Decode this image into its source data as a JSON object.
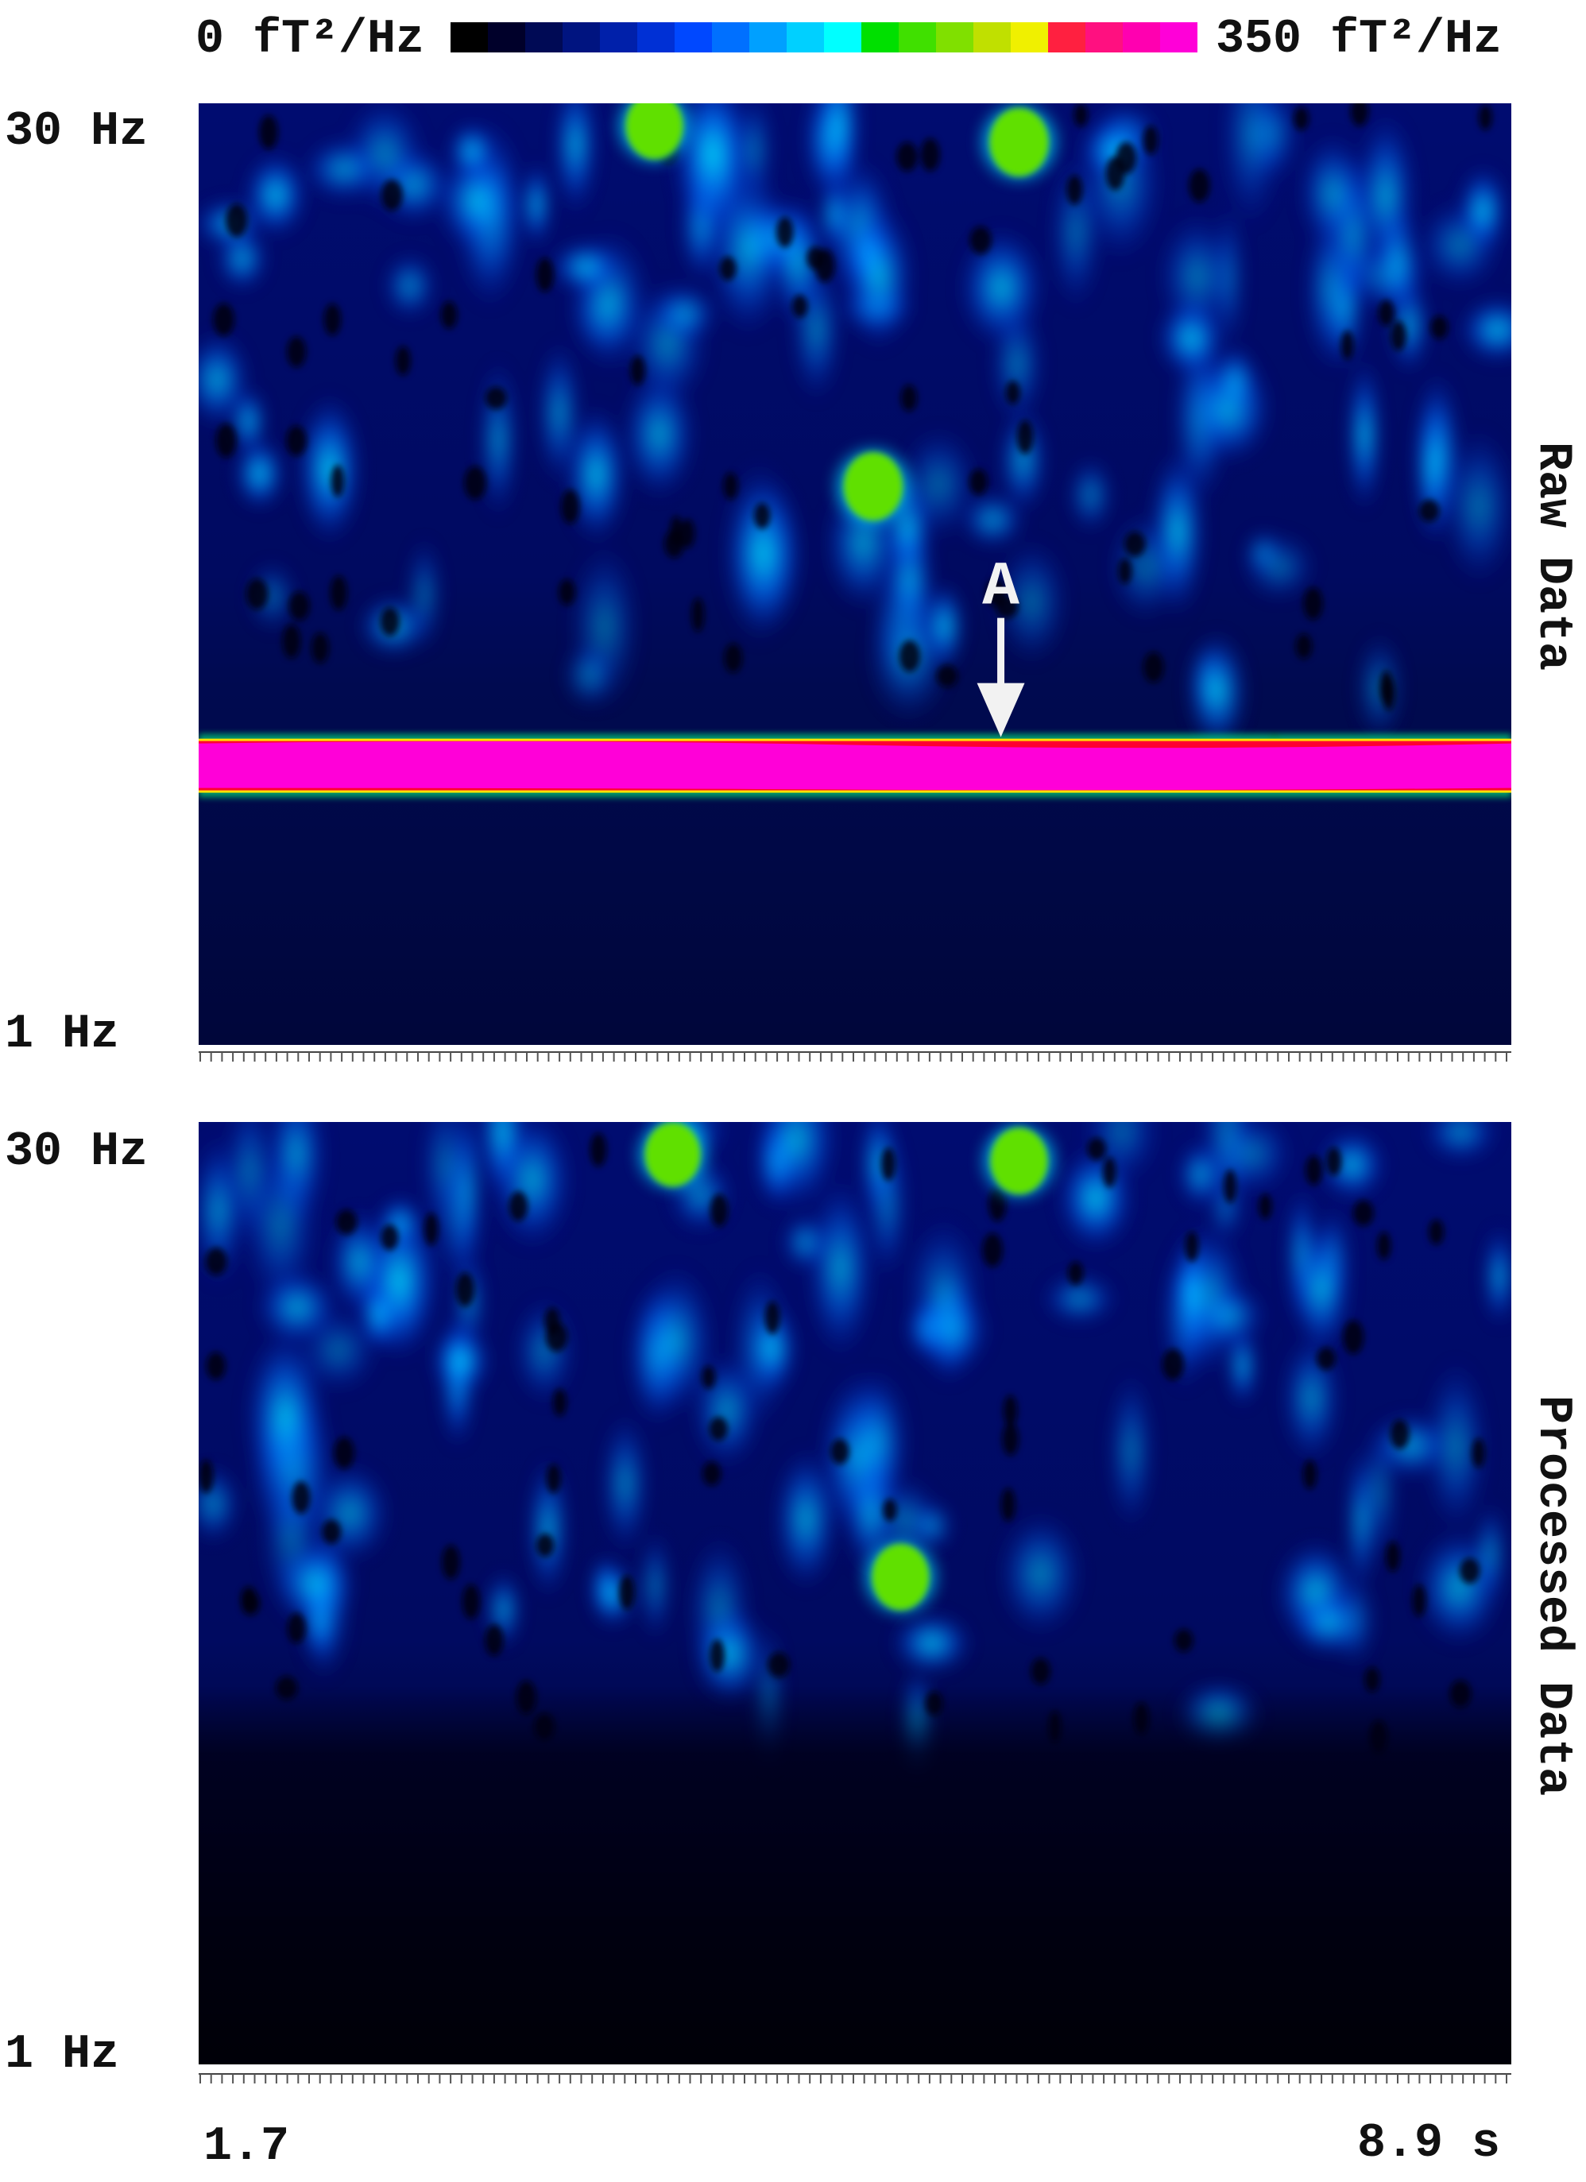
{
  "colorbar": {
    "min_label": "0 fT²/Hz",
    "max_label": "350 fT²/Hz",
    "colors": [
      "#000000",
      "#00002a",
      "#000a55",
      "#001480",
      "#0020aa",
      "#0030d5",
      "#0048ff",
      "#0070ff",
      "#00a0ff",
      "#00d0ff",
      "#00ffff",
      "#00e000",
      "#40e000",
      "#80e000",
      "#c0e000",
      "#f0f000",
      "#ff2040",
      "#ff1080",
      "#ff00b0",
      "#ff00d8"
    ]
  },
  "chart_data": [
    {
      "type": "heatmap",
      "panel_label": "Raw Data",
      "y_top_label": "30 Hz",
      "y_bottom_label": "1 Hz",
      "ylim": [
        1,
        30
      ],
      "xlim": [
        1.7,
        8.9
      ],
      "value_range": [
        0,
        350
      ],
      "annotation": "A",
      "features": [
        {
          "kind": "line_noise_band",
          "frequency_hz": 9.6,
          "power": 350
        },
        {
          "kind": "blob",
          "time_s": 5.4,
          "frequency_hz": 18.2,
          "power": 230
        },
        {
          "kind": "blob",
          "time_s": 4.2,
          "frequency_hz": 29.3,
          "power": 220
        },
        {
          "kind": "blob",
          "time_s": 6.2,
          "frequency_hz": 28.8,
          "power": 230
        }
      ]
    },
    {
      "type": "heatmap",
      "panel_label": "Processed Data",
      "y_top_label": "30 Hz",
      "y_bottom_label": "1 Hz",
      "ylim": [
        1,
        30
      ],
      "xlim": [
        1.7,
        8.9
      ],
      "value_range": [
        0,
        350
      ],
      "features": [
        {
          "kind": "blob",
          "time_s": 5.55,
          "frequency_hz": 16.0,
          "power": 220
        },
        {
          "kind": "blob",
          "time_s": 4.3,
          "frequency_hz": 29.0,
          "power": 210
        },
        {
          "kind": "blob",
          "time_s": 6.2,
          "frequency_hz": 28.8,
          "power": 220
        }
      ]
    }
  ],
  "x_axis": {
    "left_label": "1.7",
    "right_label": "8.9 s"
  }
}
